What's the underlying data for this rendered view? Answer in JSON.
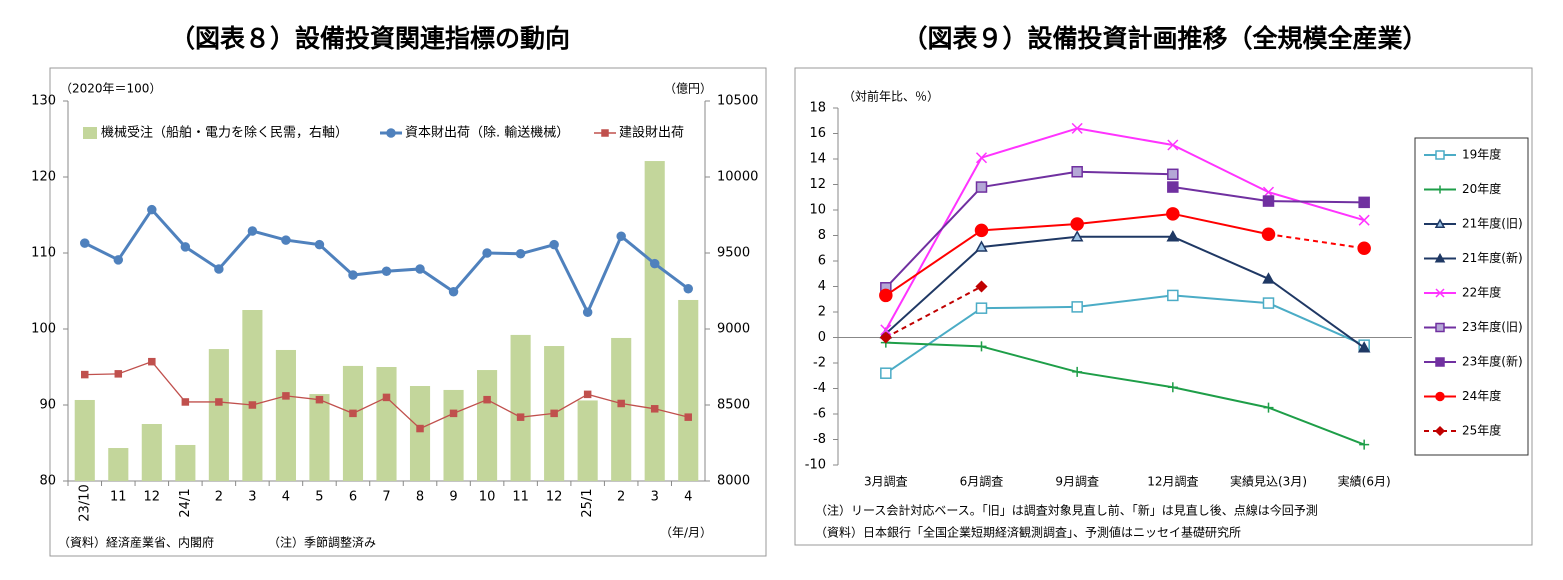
{
  "chart_data": [
    {
      "type": "bar-line",
      "title": "（図表８）設備投資関連指標の動向",
      "y_unit_label": "（2020年＝100）",
      "y2_unit_label": "（億円）",
      "x_unit_label": "（年/月）",
      "source": "（資料）経済産業省、内閣府",
      "note": "（注）季節調整済み",
      "categories": [
        "23/10",
        "11",
        "12",
        "24/1",
        "2",
        "3",
        "4",
        "5",
        "6",
        "7",
        "8",
        "9",
        "10",
        "11",
        "12",
        "25/1",
        "2",
        "3",
        "4"
      ],
      "ylim": [
        80,
        130
      ],
      "yticks": [
        80,
        90,
        100,
        110,
        120,
        130
      ],
      "y2lim": [
        8000,
        10500
      ],
      "y2ticks": [
        8000,
        8500,
        9000,
        9500,
        10000,
        10500
      ],
      "series": [
        {
          "name": "機械受注（船舶・電力を除く民需，右軸）",
          "type": "bar",
          "axis": "y2",
          "color": "#c3d69b",
          "values": [
            8533,
            8217,
            8375,
            8237,
            8868,
            9125,
            8862,
            8572,
            8757,
            8750,
            8625,
            8599,
            8730,
            8961,
            8888,
            8530,
            8941,
            10105,
            9191
          ]
        },
        {
          "name": "資本財出荷（除. 輸送機械）",
          "type": "line",
          "color": "#4f81bd",
          "marker": "circle",
          "values": [
            111.3,
            109.1,
            115.7,
            110.8,
            107.9,
            112.9,
            111.7,
            111.1,
            107.1,
            107.6,
            107.9,
            104.9,
            110.0,
            109.9,
            111.1,
            102.2,
            112.2,
            108.6,
            105.3
          ]
        },
        {
          "name": "建設財出荷",
          "type": "line",
          "color": "#c0504d",
          "marker": "square",
          "values": [
            94.0,
            94.1,
            95.7,
            90.4,
            90.4,
            90.0,
            91.2,
            90.7,
            88.9,
            91.0,
            86.9,
            88.9,
            90.7,
            88.4,
            88.9,
            91.4,
            90.2,
            89.5,
            88.4
          ]
        }
      ]
    },
    {
      "type": "line",
      "title": "（図表９）設備投資計画推移（全規模全産業）",
      "y_unit_label": "（対前年比、％）",
      "note": "（注）リース会計対応ベース。「旧」は調査対象見直し前、「新」は見直し後、点線は今回予測",
      "source": "（資料）日本銀行「全国企業短期経済観測調査」、予測値はニッセイ基礎研究所",
      "categories": [
        "3月調査",
        "6月調査",
        "9月調査",
        "12月調査",
        "実績見込(3月)",
        "実績(6月)"
      ],
      "ylim": [
        -10,
        18
      ],
      "yticks": [
        -10,
        -8,
        -6,
        -4,
        -2,
        0,
        2,
        4,
        6,
        8,
        10,
        12,
        14,
        16,
        18
      ],
      "series": [
        {
          "name": "19年度",
          "color": "#4bacc6",
          "marker": "square",
          "marker_fill": "#ffffff",
          "values": [
            -2.8,
            2.3,
            2.4,
            3.3,
            2.7,
            -0.6
          ]
        },
        {
          "name": "20年度",
          "color": "#1e9e48",
          "marker": "plus",
          "values": [
            -0.4,
            -0.7,
            -2.7,
            -3.9,
            -5.5,
            -8.4
          ]
        },
        {
          "name": "21年度(旧)",
          "color": "#1f3864",
          "marker": "triangle",
          "marker_fill": "#9dc3e6",
          "values": [
            0.3,
            7.1,
            7.9,
            7.9,
            null,
            null
          ]
        },
        {
          "name": "21年度(新)",
          "color": "#1f3864",
          "marker": "triangle",
          "values": [
            null,
            null,
            null,
            7.9,
            4.6,
            -0.8
          ]
        },
        {
          "name": "22年度",
          "color": "#ff33ff",
          "marker": "x",
          "values": [
            0.6,
            14.1,
            16.4,
            15.1,
            11.4,
            9.2
          ]
        },
        {
          "name": "23年度(旧)",
          "color": "#7030a0",
          "marker": "square",
          "marker_fill": "#b4a7d6",
          "values": [
            3.9,
            11.8,
            13.0,
            12.8,
            null,
            null
          ]
        },
        {
          "name": "23年度(新)",
          "color": "#7030a0",
          "marker": "square",
          "values": [
            null,
            null,
            null,
            11.8,
            10.7,
            10.6
          ]
        },
        {
          "name": "24年度",
          "color": "#ff0000",
          "marker": "circle",
          "dashed_from": 4,
          "values": [
            3.3,
            8.4,
            8.9,
            9.7,
            8.1,
            7.0
          ]
        },
        {
          "name": "25年度",
          "color": "#c00000",
          "marker": "diamond",
          "dashed_from": 0,
          "values": [
            0.0,
            4.0,
            null,
            null,
            null,
            null
          ]
        }
      ]
    }
  ]
}
